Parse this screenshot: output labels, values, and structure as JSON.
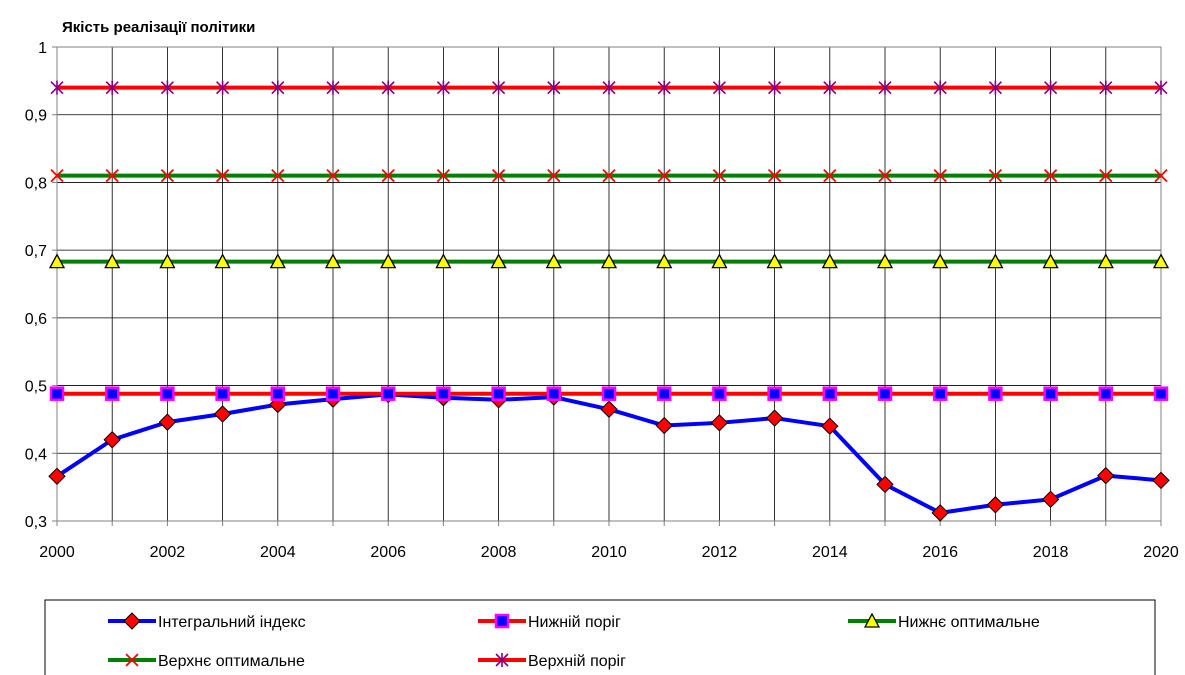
{
  "chart_data": {
    "type": "line",
    "title": "Якість реалізації політики",
    "xlabel": "",
    "ylabel": "",
    "x": [
      2000,
      2001,
      2002,
      2003,
      2004,
      2005,
      2006,
      2007,
      2008,
      2009,
      2010,
      2011,
      2012,
      2013,
      2014,
      2015,
      2016,
      2017,
      2018,
      2019,
      2020
    ],
    "x_tick_labels": [
      "2000",
      "2002",
      "2004",
      "2006",
      "2008",
      "2010",
      "2012",
      "2014",
      "2016",
      "2018",
      "2020"
    ],
    "y_tick_labels": [
      "0,3",
      "0,4",
      "0,5",
      "0,6",
      "0,7",
      "0,8",
      "0,9",
      "1"
    ],
    "ylim": [
      0.3,
      1.0
    ],
    "grid": true,
    "legend_position": "bottom",
    "series": [
      {
        "name": "Інтегральний індекс",
        "color": "#0000ff",
        "marker": "diamond",
        "marker_fill": "#ff0000",
        "values": [
          0.366,
          0.42,
          0.446,
          0.458,
          0.472,
          0.48,
          0.487,
          0.482,
          0.479,
          0.483,
          0.465,
          0.441,
          0.445,
          0.452,
          0.44,
          0.354,
          0.312,
          0.324,
          0.332,
          0.367,
          0.36
        ]
      },
      {
        "name": "Нижній поріг",
        "color": "#ff0000",
        "marker": "square",
        "marker_fill": "#0000ff",
        "marker_stroke": "#ff00ff",
        "values": [
          0.488,
          0.488,
          0.488,
          0.488,
          0.488,
          0.488,
          0.488,
          0.488,
          0.488,
          0.488,
          0.488,
          0.488,
          0.488,
          0.488,
          0.488,
          0.488,
          0.488,
          0.488,
          0.488,
          0.488,
          0.488
        ]
      },
      {
        "name": "Нижнє оптимальне",
        "color": "#008000",
        "marker": "triangle",
        "marker_fill": "#ffff00",
        "values": [
          0.683,
          0.683,
          0.683,
          0.683,
          0.683,
          0.683,
          0.683,
          0.683,
          0.683,
          0.683,
          0.683,
          0.683,
          0.683,
          0.683,
          0.683,
          0.683,
          0.683,
          0.683,
          0.683,
          0.683,
          0.683
        ]
      },
      {
        "name": "Верхнє оптимальне",
        "color": "#008000",
        "marker": "x",
        "marker_stroke": "#ff0000",
        "values": [
          0.81,
          0.81,
          0.81,
          0.81,
          0.81,
          0.81,
          0.81,
          0.81,
          0.81,
          0.81,
          0.81,
          0.81,
          0.81,
          0.81,
          0.81,
          0.81,
          0.81,
          0.81,
          0.81,
          0.81,
          0.81
        ]
      },
      {
        "name": "Верхній поріг",
        "color": "#ff0000",
        "marker": "asterisk",
        "marker_stroke": "#800080",
        "values": [
          0.94,
          0.94,
          0.94,
          0.94,
          0.94,
          0.94,
          0.94,
          0.94,
          0.94,
          0.94,
          0.94,
          0.94,
          0.94,
          0.94,
          0.94,
          0.94,
          0.94,
          0.94,
          0.94,
          0.94,
          0.94
        ]
      }
    ]
  }
}
